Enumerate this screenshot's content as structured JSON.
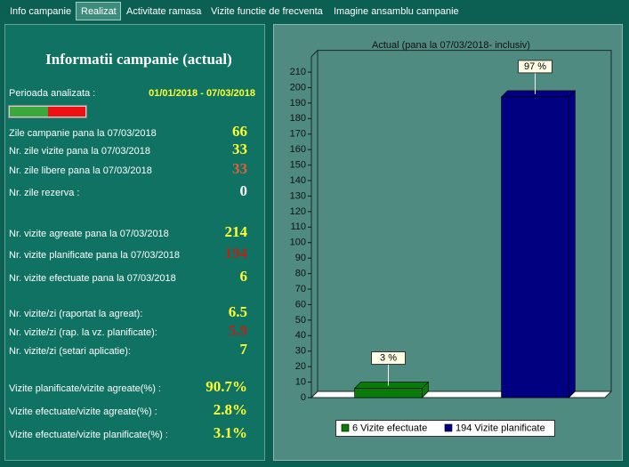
{
  "tabs": [
    {
      "label": "Info campanie",
      "selected": false
    },
    {
      "label": "Realizat",
      "selected": true
    },
    {
      "label": "Activitate ramasa",
      "selected": false
    },
    {
      "label": "Vizite functie de frecventa",
      "selected": false
    },
    {
      "label": "Imagine ansamblu campanie",
      "selected": false
    }
  ],
  "summary": {
    "title": "Informatii campanie (actual)",
    "period_label": "Perioada analizata :",
    "period": "01/01/2018 - 07/03/2018",
    "rows": [
      {
        "label": "Zile campanie pana la 07/03/2018",
        "value": "66",
        "color": "#ffff33"
      },
      {
        "label": "Nr. zile vizite pana la 07/03/2018",
        "value": "33",
        "color": "#ffff33"
      },
      {
        "label": "Nr. zile libere pana la 07/03/2018",
        "value": "33",
        "color": "#e0603a"
      },
      {
        "label": "Nr. zile rezerva :",
        "value": "0",
        "color": "#ffffff"
      },
      {
        "label": "Nr. vizite agreate pana la 07/03/2018",
        "value": "214",
        "color": "#ffff33"
      },
      {
        "label": "Nr. vizite planificate pana la 07/03/2018",
        "value": "194",
        "color": "#b0281a"
      },
      {
        "label": "Nr. vizite efectuate pana la 07/03/2018",
        "value": "6",
        "color": "#ffff33"
      },
      {
        "label": "Nr. vizite/zi (raportat la agreat):",
        "value": "6.5",
        "color": "#ffff33"
      },
      {
        "label": "Nr. vizite/zi (rap. la vz. planificate):",
        "value": "5.9",
        "color": "#b0281a"
      },
      {
        "label": "Nr. vizite/zi (setari aplicatie):",
        "value": "7",
        "color": "#ffff33"
      },
      {
        "label": "Vizite planificate/vizite agreate(%) :",
        "value": "90.7%",
        "color": "#ffff33"
      },
      {
        "label": "Vizite efectuate/vizite agreate(%) :",
        "value": "2.8%",
        "color": "#ffff33"
      },
      {
        "label": "Vizite efectuate/vizite planificate(%) :",
        "value": "3.1%",
        "color": "#ffff33"
      }
    ]
  },
  "chart_data": {
    "type": "bar",
    "title": "Actual (pana la 07/03/2018- inclusiv)",
    "categories": [
      "6 Vizite efectuate",
      "194 Vizite planificate"
    ],
    "values": [
      6,
      194
    ],
    "colors": [
      "#0a7a0a",
      "#000080"
    ],
    "annotations": [
      "3 %",
      "97 %"
    ],
    "ylim": [
      0,
      220
    ],
    "yticks": [
      0,
      10,
      20,
      30,
      40,
      50,
      60,
      70,
      80,
      90,
      100,
      110,
      120,
      130,
      140,
      150,
      160,
      170,
      180,
      190,
      200,
      210
    ]
  }
}
